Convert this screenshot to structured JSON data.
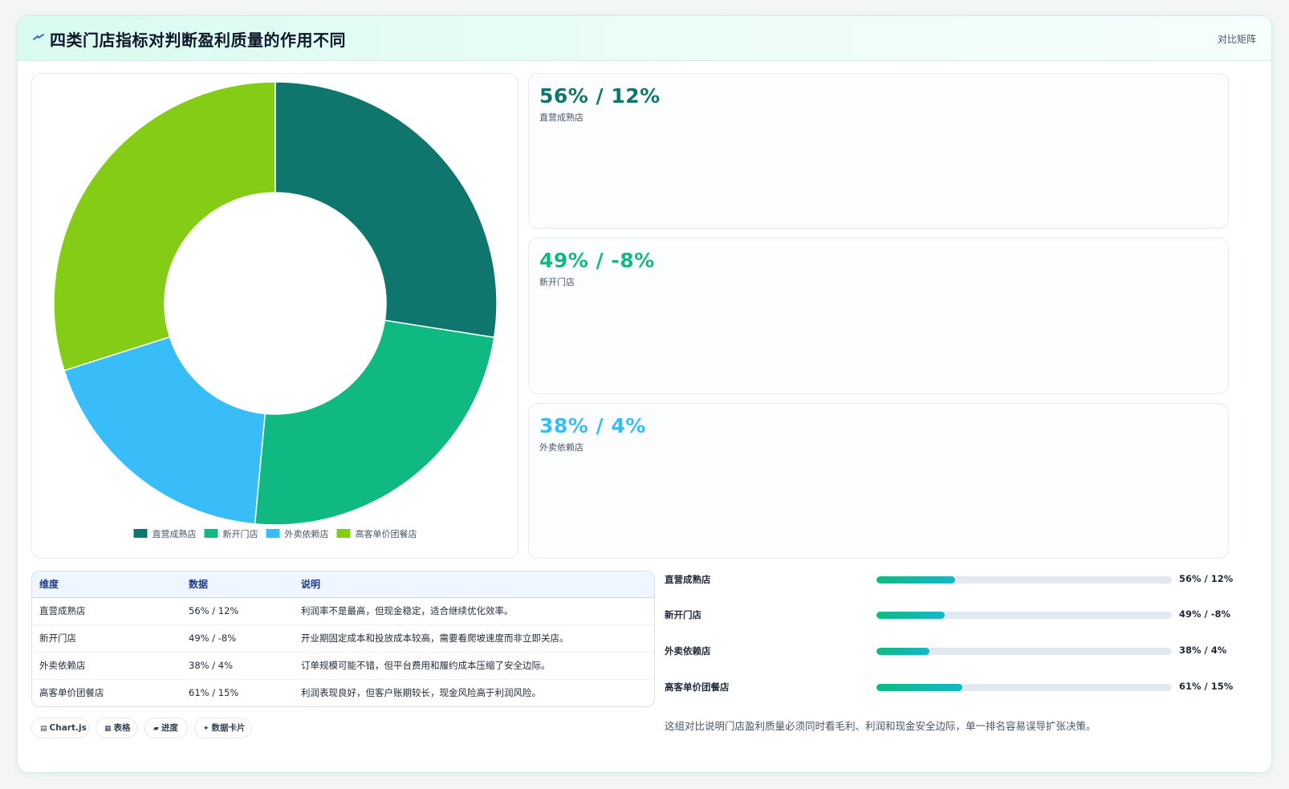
{
  "header": {
    "title": "四类门店指标对判断盈利质量的作用不同",
    "tag": "对比矩阵",
    "logo_icon": "spark-icon"
  },
  "colors": {
    "s1": "#0f766e",
    "s2": "#10b981",
    "s3": "#38bdf8",
    "s4": "#84cc16"
  },
  "chart_data": {
    "type": "doughnut",
    "categories": [
      "直营成熟店",
      "新开门店",
      "外卖依赖店",
      "高客单价团餐店"
    ],
    "values": [
      56,
      49,
      38,
      61
    ],
    "legend_position": "bottom",
    "title": ""
  },
  "kpis": [
    {
      "value": "56% / 12%",
      "label": "直营成熟店",
      "color": "#0f766e"
    },
    {
      "value": "49% / -8%",
      "label": "新开门店",
      "color": "#10b981"
    },
    {
      "value": "38% / 4%",
      "label": "外卖依赖店",
      "color": "#38bdf8"
    }
  ],
  "table": {
    "headers": [
      "维度",
      "数据",
      "说明"
    ],
    "rows": [
      [
        "直营成熟店",
        "56% / 12%",
        "利润率不是最高，但现金稳定，适合继续优化效率。"
      ],
      [
        "新开门店",
        "49% / -8%",
        "开业期固定成本和投放成本较高，需要看爬坡速度而非立即关店。"
      ],
      [
        "外卖依赖店",
        "38% / 4%",
        "订单规模可能不错，但平台费用和履约成本压缩了安全边际。"
      ],
      [
        "高客单价团餐店",
        "61% / 15%",
        "利润表现良好，但客户账期较长，现金风险高于利润风险。"
      ]
    ]
  },
  "chips": [
    {
      "icon": "▤",
      "label": "Chart.js"
    },
    {
      "icon": "▦",
      "label": "表格"
    },
    {
      "icon": "▰",
      "label": "进度"
    },
    {
      "icon": "✦",
      "label": "数据卡片"
    }
  ],
  "bars": [
    {
      "label": "直营成熟店",
      "value": "56% / 12%",
      "fraction": 0.265
    },
    {
      "label": "新开门店",
      "value": "49% / -8%",
      "fraction": 0.23
    },
    {
      "label": "外卖依赖店",
      "value": "38% / 4%",
      "fraction": 0.18
    },
    {
      "label": "高客单价团餐店",
      "value": "61% / 15%",
      "fraction": 0.29
    }
  ],
  "note": "这组对比说明门店盈利质量必须同时看毛利、利润和现金安全边际，单一排名容易误导扩张决策。"
}
